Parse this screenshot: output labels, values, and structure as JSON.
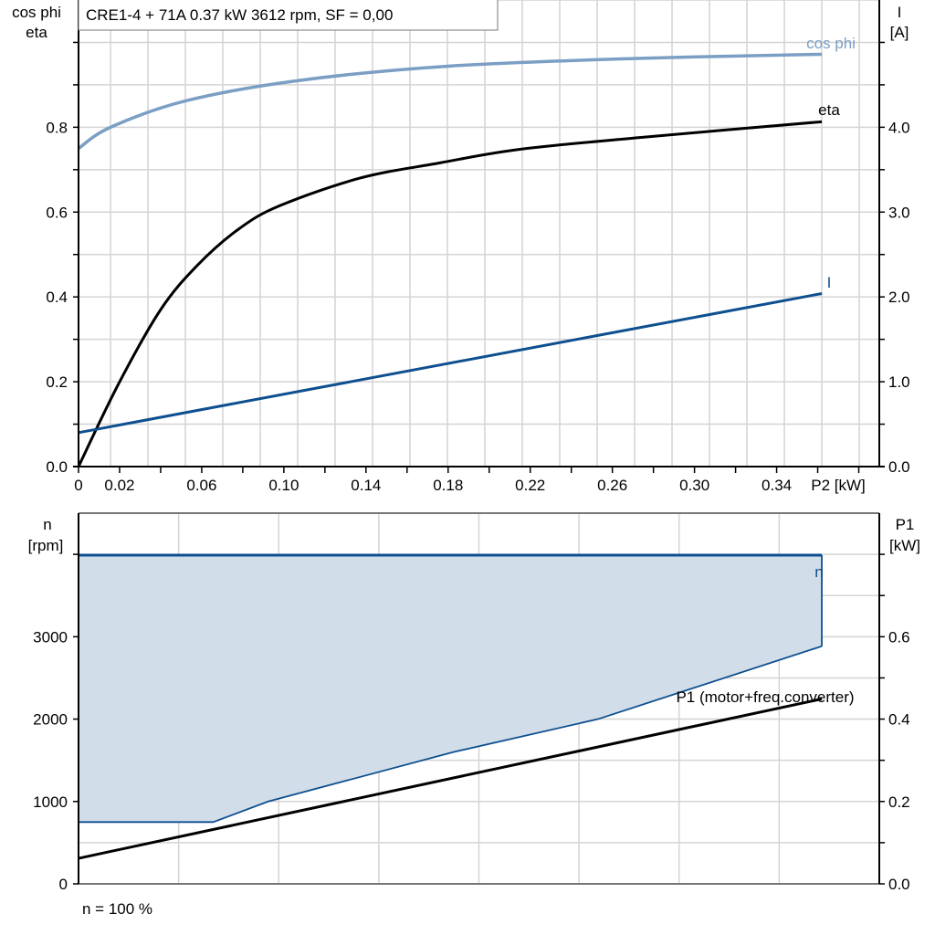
{
  "title": "CRE1-4 + 71A   0.37 kW   3612 rpm, SF = 0,00",
  "footer": "n = 100 %",
  "colors": {
    "cos_phi": "#7b9fc4",
    "eta": "#000000",
    "I": "#0d4f8f",
    "n": "#0d4f8f",
    "n_fill": "#d1dde8",
    "P1": "#000000",
    "grid": "#d4d4d4"
  },
  "chart_data": [
    {
      "type": "line",
      "title": "CRE1-4 + 71A   0.37 kW   3612 rpm, SF = 0,00",
      "xlabel": "P2 [kW]",
      "ylabel_left": [
        "cos phi",
        "eta"
      ],
      "ylabel_right": [
        "I",
        "[A]"
      ],
      "xlim": [
        0,
        0.39
      ],
      "ylim_left": [
        0,
        1.1
      ],
      "ylim_right": [
        0,
        5.5
      ],
      "grid": true,
      "x_ticks": [
        "0",
        "0.02",
        "0.06",
        "0.10",
        "0.14",
        "0.18",
        "0.22",
        "0.26",
        "0.30",
        "0.34"
      ],
      "x_tick_values": [
        0,
        0.02,
        0.06,
        0.1,
        0.14,
        0.18,
        0.22,
        0.26,
        0.3,
        0.34
      ],
      "y_left_ticks": [
        "0.0",
        "0.2",
        "0.4",
        "0.6",
        "0.8"
      ],
      "y_left_tick_values": [
        0,
        0.2,
        0.4,
        0.6,
        0.8
      ],
      "y_right_ticks": [
        "0.0",
        "1.0",
        "2.0",
        "3.0",
        "4.0"
      ],
      "y_right_tick_values": [
        0,
        1,
        2,
        3,
        4
      ],
      "series": [
        {
          "name": "cos phi",
          "axis": "left",
          "x": [
            0,
            0.0156,
            0.052,
            0.107,
            0.18,
            0.27,
            0.362
          ],
          "y": [
            0.75,
            0.8,
            0.862,
            0.91,
            0.944,
            0.962,
            0.972
          ]
        },
        {
          "name": "eta",
          "axis": "left",
          "x": [
            0,
            0.0196,
            0.04,
            0.058,
            0.078,
            0.098,
            0.137,
            0.176,
            0.215,
            0.274,
            0.362
          ],
          "y": [
            0,
            0.196,
            0.37,
            0.475,
            0.56,
            0.615,
            0.68,
            0.716,
            0.748,
            0.776,
            0.813
          ]
        },
        {
          "name": "I",
          "axis": "right",
          "x": [
            0,
            0.362
          ],
          "y": [
            0.4,
            2.04
          ]
        }
      ]
    },
    {
      "type": "area",
      "xlim": [
        0,
        0.39
      ],
      "ylabel_left": [
        "n",
        "[rpm]"
      ],
      "ylabel_right": [
        "P1",
        "[kW]"
      ],
      "ylim_left": [
        0,
        4500
      ],
      "ylim_right": [
        0,
        0.9
      ],
      "grid": true,
      "y_left_ticks": [
        "0",
        "1000",
        "2000",
        "3000"
      ],
      "y_left_tick_values": [
        0,
        1000,
        2000,
        3000
      ],
      "y_right_ticks": [
        "0.0",
        "0.2",
        "0.4",
        "0.6"
      ],
      "y_right_tick_values": [
        0,
        0.2,
        0.4,
        0.6
      ],
      "series": [
        {
          "name": "n",
          "axis": "left",
          "upper": {
            "x": [
              0,
              0.362
            ],
            "y": [
              3990,
              3990
            ]
          },
          "lower": {
            "x": [
              0,
              0.0656,
              0.0924,
              0.1826,
              0.253,
              0.362
            ],
            "y": [
              750,
              750,
              1000,
              1600,
              2000,
              2885
            ]
          }
        },
        {
          "name": "P1 (motor+freq.converter)",
          "axis": "right",
          "x": [
            0,
            0.362
          ],
          "y": [
            0.062,
            0.449
          ]
        }
      ]
    }
  ]
}
